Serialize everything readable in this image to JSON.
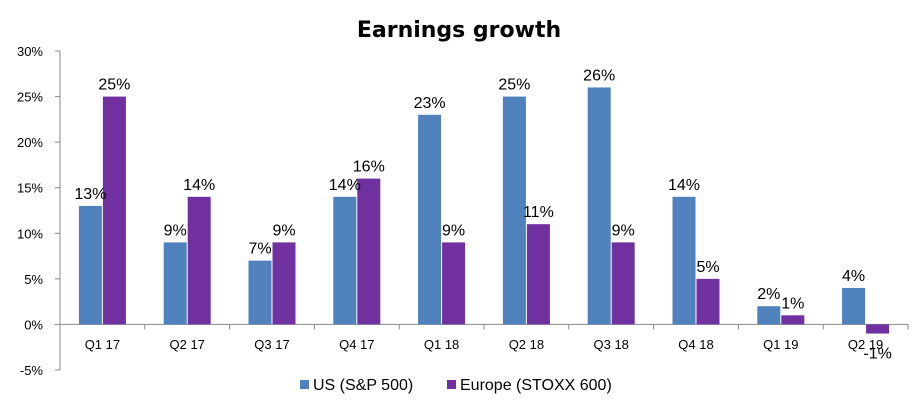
{
  "chart_data": {
    "type": "bar",
    "title": "Earnings growth",
    "categories": [
      "Q1 17",
      "Q2 17",
      "Q3 17",
      "Q4 17",
      "Q1 18",
      "Q2 18",
      "Q3 18",
      "Q4 18",
      "Q1 19",
      "Q2 19"
    ],
    "series": [
      {
        "name": "US (S&P 500)",
        "color": "#4F81BD",
        "values": [
          13,
          9,
          7,
          14,
          23,
          25,
          26,
          14,
          2,
          4
        ],
        "labels": [
          "13%",
          "9%",
          "7%",
          "14%",
          "23%",
          "25%",
          "26%",
          "14%",
          "2%",
          "4%"
        ]
      },
      {
        "name": "Europe (STOXX 600)",
        "color": "#7030A0",
        "values": [
          25,
          14,
          9,
          16,
          9,
          11,
          9,
          5,
          1,
          -1
        ],
        "labels": [
          "25%",
          "14%",
          "9%",
          "16%",
          "9%",
          "11%",
          "9%",
          "5%",
          "1%",
          "-1%"
        ]
      }
    ],
    "ylim": [
      -5,
      30
    ],
    "yticks": [
      30,
      25,
      20,
      15,
      10,
      5,
      0,
      -5
    ],
    "ytick_labels": [
      "30%",
      "25%",
      "20%",
      "15%",
      "10%",
      "5%",
      "0%",
      "-5%"
    ],
    "grid": false,
    "legend_position": "bottom"
  }
}
